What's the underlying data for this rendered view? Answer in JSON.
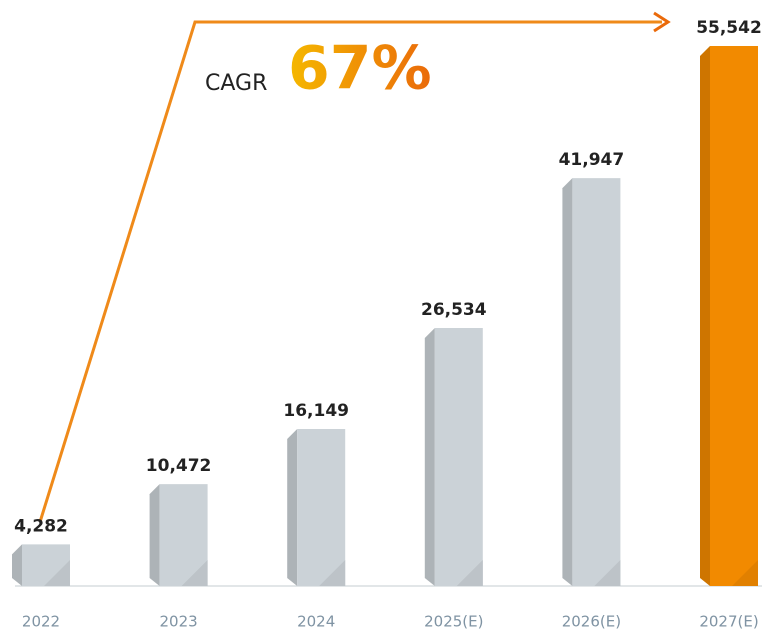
{
  "chart_data": {
    "type": "bar",
    "categories": [
      "2022",
      "2023",
      "2024",
      "2025(E)",
      "2026(E)",
      "2027(E)"
    ],
    "values": [
      4282,
      10472,
      16149,
      26534,
      41947,
      55542
    ],
    "value_labels": [
      "4,282",
      "10,472",
      "16,149",
      "26,534",
      "41,947",
      "55,542"
    ],
    "colors": [
      "#cbd2d7",
      "#cbd2d7",
      "#cbd2d7",
      "#cbd2d7",
      "#cbd2d7",
      "#f28a00"
    ],
    "annotations": [
      "CAGR",
      "67%"
    ]
  }
}
